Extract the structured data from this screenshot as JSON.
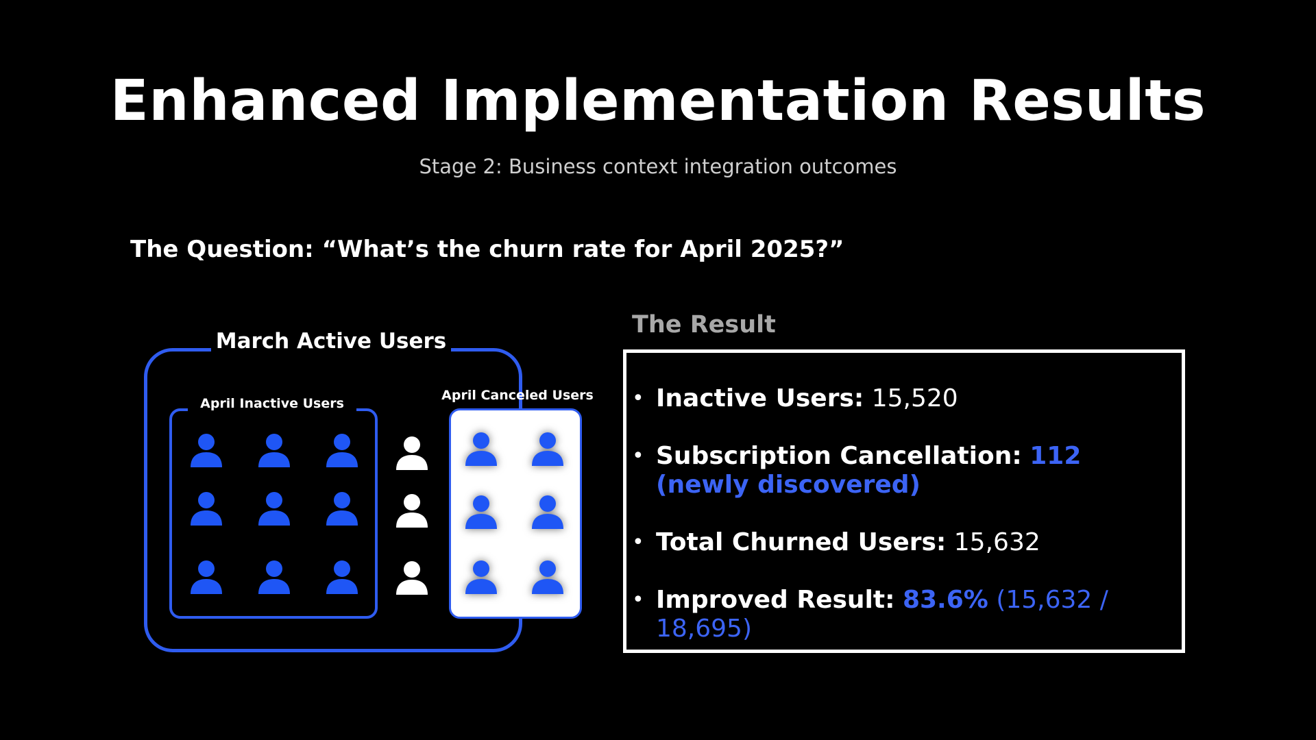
{
  "slide": {
    "title": "Enhanced Implementation Results",
    "subtitle": "Stage 2: Business context integration outcomes",
    "question": "The Question: “What’s the churn rate for April 2025?”"
  },
  "diagram": {
    "march_label": "March Active Users",
    "inactive_label": "April Inactive Users",
    "canceled_label": "April Canceled Users",
    "icon": "person-icon",
    "colors": {
      "accent": "#2f5cf0",
      "inactive_icon": "#1f56f5",
      "neutral_icon": "#ffffff"
    }
  },
  "result": {
    "heading": "The Result",
    "items": [
      {
        "label": "Inactive Users:",
        "value": "15,520"
      },
      {
        "label": "Subscription Cancellation:",
        "value": "112 (newly discovered)"
      },
      {
        "label": "Total Churned Users:",
        "value": "15,632"
      },
      {
        "label": "Improved Result:",
        "value_bold": "83.6%",
        "value_detail": "(15,632 / 18,695)"
      }
    ]
  }
}
